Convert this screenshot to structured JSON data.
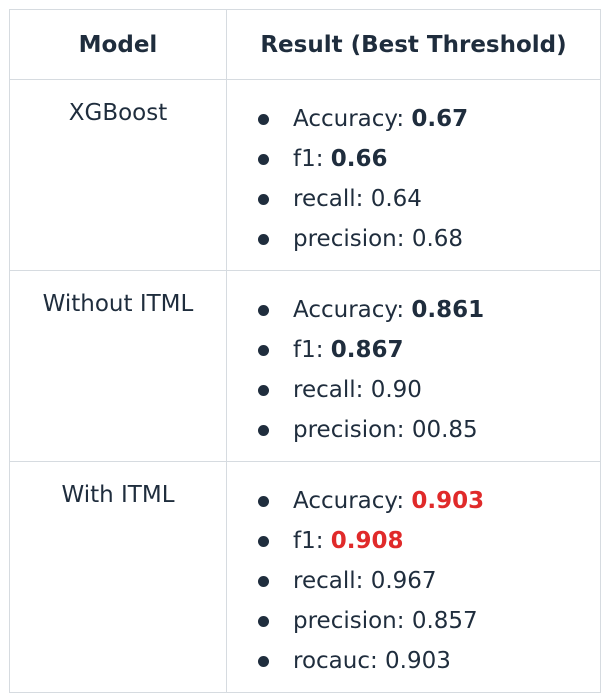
{
  "header": {
    "model": "Model",
    "result": "Result (Best Threshold)"
  },
  "rows": [
    {
      "model": "XGBoost",
      "metrics": [
        {
          "label": "Accuracy: ",
          "value": "0.67"
        },
        {
          "label": "f1: ",
          "value": "0.66"
        },
        {
          "label": "recall: ",
          "value": "0.64"
        },
        {
          "label": "precision: ",
          "value": "0.68"
        }
      ]
    },
    {
      "model": "Without ITML",
      "metrics": [
        {
          "label": "Accuracy: ",
          "value": "0.861"
        },
        {
          "label": "f1: ",
          "value": "0.867"
        },
        {
          "label": "recall: ",
          "value": "0.90"
        },
        {
          "label": "precision: ",
          "value": "00.85"
        }
      ]
    },
    {
      "model": "With ITML",
      "metrics": [
        {
          "label": "Accuracy: ",
          "value": "0.903"
        },
        {
          "label": "f1: ",
          "value": "0.908"
        },
        {
          "label": "recall: ",
          "value": "0.967"
        },
        {
          "label": "precision: ",
          "value": "0.857"
        },
        {
          "label": "rocauc: ",
          "value": "0.903"
        }
      ]
    }
  ],
  "colors": {
    "text": "#1f2d3d",
    "highlight": "#e02a2a",
    "border": "#d6dbe0"
  }
}
